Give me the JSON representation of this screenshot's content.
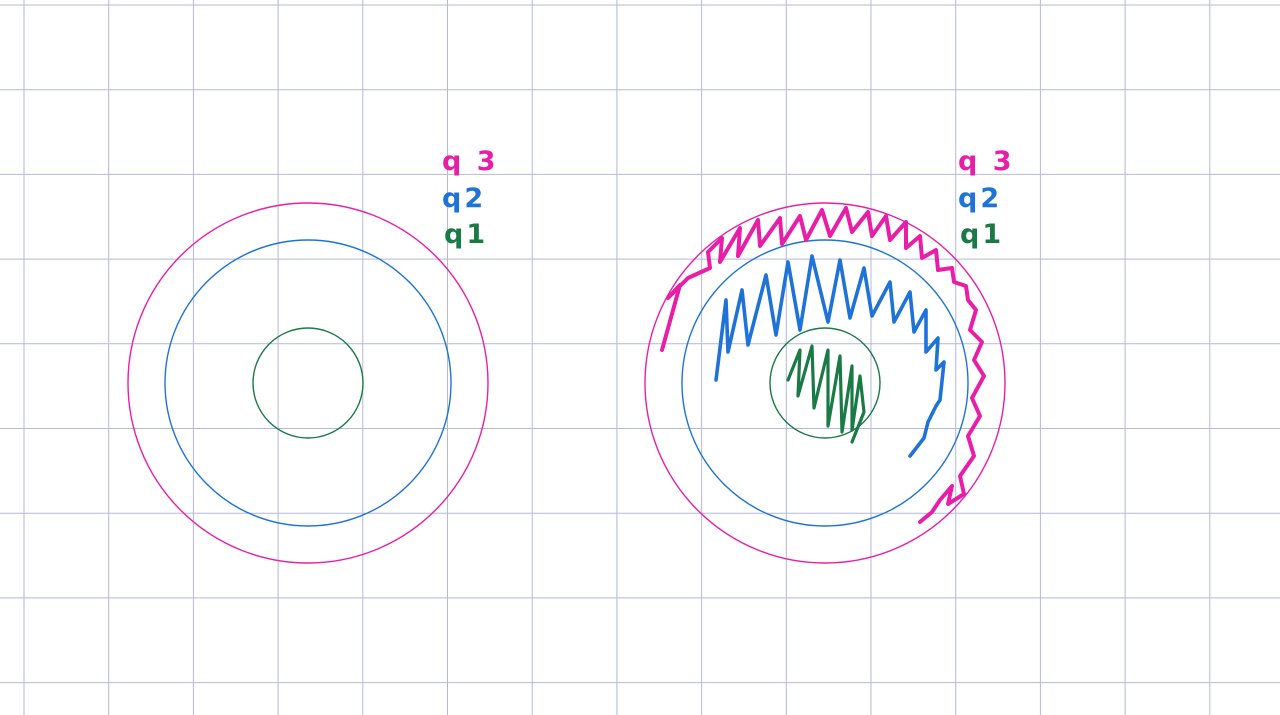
{
  "colors": {
    "grid": "#b4b8dc",
    "q1": "#1a7a46",
    "q2": "#1e73d8",
    "q3": "#e91ea8"
  },
  "diagrams": [
    {
      "legend": {
        "q3": "q 3",
        "q2": "q2",
        "q1": "q1"
      }
    },
    {
      "legend": {
        "q3": "q 3",
        "q2": "q2",
        "q1": "q1"
      }
    }
  ]
}
